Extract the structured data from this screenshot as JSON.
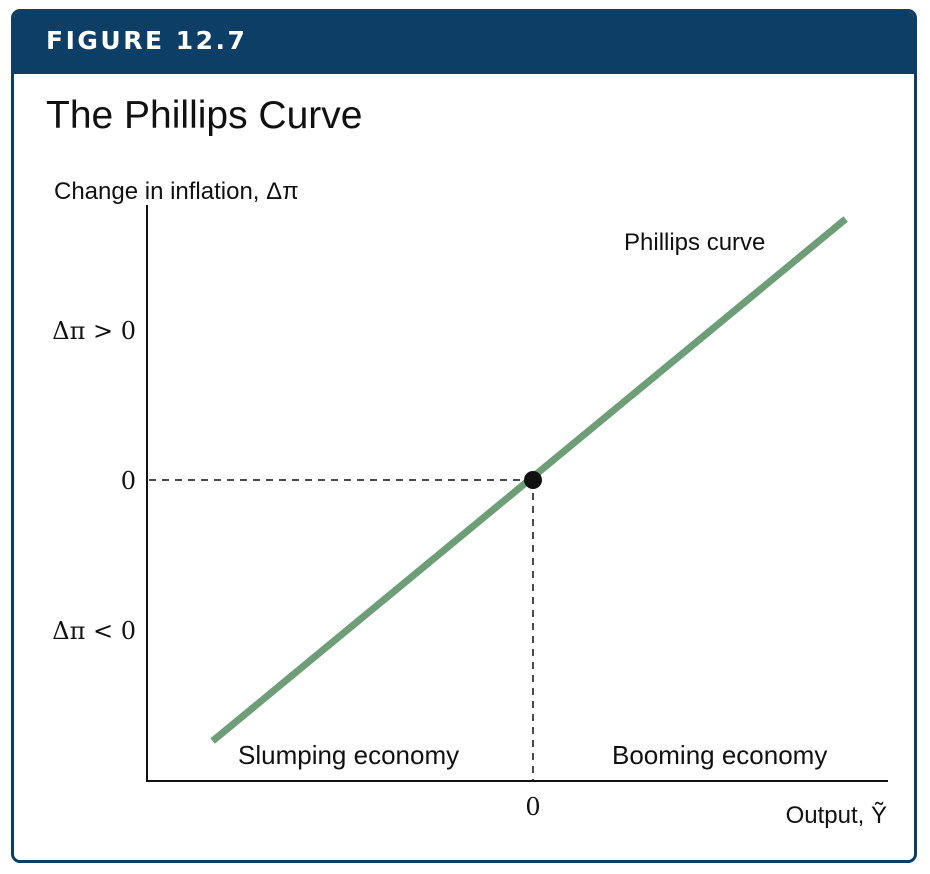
{
  "figure": {
    "label": "FIGURE 12.7",
    "title": "The Phillips Curve"
  },
  "colors": {
    "header": "#0d3f66",
    "curve": "#6e9e78",
    "axis": "#111111"
  },
  "chart_data": {
    "type": "line",
    "title": "The Phillips Curve",
    "ylabel": "Change in inflation, Δπ",
    "xlabel": "Output, Ỹ",
    "xlim": [
      -1,
      1
    ],
    "ylim": [
      -1,
      1
    ],
    "grid": false,
    "series": [
      {
        "name": "Phillips curve",
        "x": [
          -0.83,
          0.81
        ],
        "y": [
          -0.87,
          0.87
        ]
      }
    ],
    "point": {
      "x": 0,
      "y": 0
    },
    "y_ticks": [
      {
        "value": 0.5,
        "label": "Δπ > 0"
      },
      {
        "value": 0,
        "label": "0"
      },
      {
        "value": -0.5,
        "label": "Δπ < 0"
      }
    ],
    "x_ticks": [
      {
        "value": 0,
        "label": "0"
      }
    ],
    "annotations": {
      "slumping": "Slumping economy",
      "booming": "Booming economy"
    }
  }
}
